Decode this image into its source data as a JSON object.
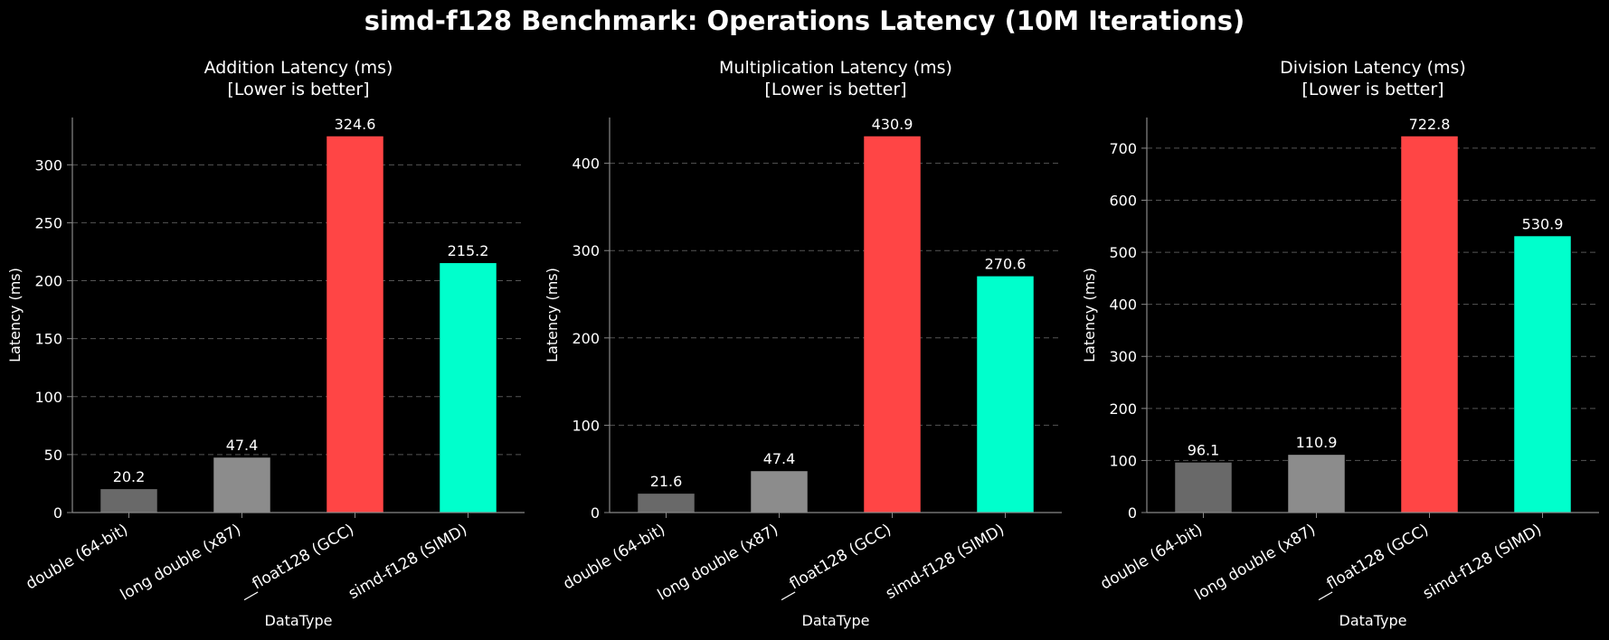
{
  "suptitle": "simd-f128 Benchmark: Operations Latency (10M Iterations)",
  "colors": {
    "background": "#000000",
    "bars": [
      "#696969",
      "#8c8c8c",
      "#ff4545",
      "#00ffcc"
    ],
    "grid": "#555555",
    "axis": "#888888"
  },
  "chart_data": [
    {
      "type": "bar",
      "title": "Addition Latency (ms)",
      "subtitle": "[Lower is better]",
      "xlabel": "DataType",
      "ylabel": "Latency (ms)",
      "categories": [
        "double (64-bit)",
        "long double (x87)",
        "__float128 (GCC)",
        "simd-f128 (SIMD)"
      ],
      "values": [
        20.2,
        47.4,
        324.6,
        215.2
      ],
      "ylim": [
        0,
        340.8
      ],
      "yticks": [
        0,
        50,
        100,
        150,
        200,
        250,
        300
      ],
      "grid": true
    },
    {
      "type": "bar",
      "title": "Multiplication Latency (ms)",
      "subtitle": "[Lower is better]",
      "xlabel": "DataType",
      "ylabel": "Latency (ms)",
      "categories": [
        "double (64-bit)",
        "long double (x87)",
        "__float128 (GCC)",
        "simd-f128 (SIMD)"
      ],
      "values": [
        21.6,
        47.4,
        430.9,
        270.6
      ],
      "ylim": [
        0,
        452.4
      ],
      "yticks": [
        0,
        100,
        200,
        300,
        400
      ],
      "grid": true
    },
    {
      "type": "bar",
      "title": "Division Latency (ms)",
      "subtitle": "[Lower is better]",
      "xlabel": "DataType",
      "ylabel": "Latency (ms)",
      "categories": [
        "double (64-bit)",
        "long double (x87)",
        "__float128 (GCC)",
        "simd-f128 (SIMD)"
      ],
      "values": [
        96.1,
        110.9,
        722.8,
        530.9
      ],
      "ylim": [
        0,
        758.9
      ],
      "yticks": [
        0,
        100,
        200,
        300,
        400,
        500,
        600,
        700
      ],
      "grid": true
    }
  ]
}
